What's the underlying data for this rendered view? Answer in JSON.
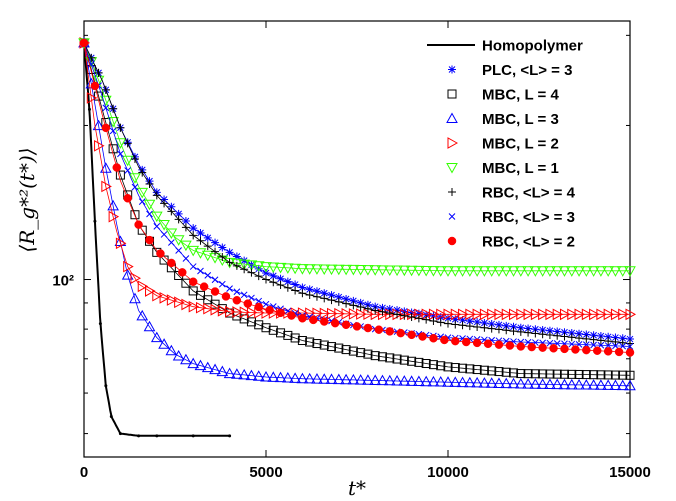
{
  "chart_data": {
    "type": "line",
    "title": "",
    "xlabel": "t*",
    "ylabel": "⟨R_g*²(t*)⟩",
    "xlim": [
      0,
      15000
    ],
    "ylim": [
      45,
      320
    ],
    "yscale": "log",
    "x_ticks": [
      0,
      5000,
      10000,
      15000
    ],
    "x_tick_labels": [
      "0",
      "5000",
      "10000",
      "15000"
    ],
    "y_ticks": [
      100
    ],
    "y_tick_labels": [
      "10²"
    ],
    "legend_position": "top-right",
    "series": [
      {
        "name": "Homopolymer",
        "color": "#000000",
        "marker": "line",
        "x": [
          0,
          150,
          300,
          450,
          600,
          750,
          1000,
          1500,
          2000,
          3000,
          4000
        ],
        "y": [
          290,
          215,
          130,
          82,
          62,
          54,
          50,
          49.5,
          49.5,
          49.5,
          49.5
        ]
      },
      {
        "name": "PLC, <L> = 3",
        "color": "#0000ff",
        "marker": "asterisk",
        "x": [
          0,
          500,
          1000,
          1500,
          2000,
          3000,
          4000,
          5000,
          6000,
          8000,
          10000,
          12000,
          15000
        ],
        "y": [
          290,
          245,
          198,
          168,
          148,
          126,
          113,
          103,
          96.5,
          88.5,
          84,
          80.5,
          76.5
        ]
      },
      {
        "name": "MBC, L = 4",
        "color": "#000000",
        "marker": "square",
        "x": [
          0,
          500,
          1000,
          1500,
          2000,
          3000,
          4000,
          5000,
          6000,
          8000,
          10000,
          12000,
          15000
        ],
        "y": [
          290,
          215,
          160,
          128,
          113,
          95,
          86,
          80.5,
          76,
          71,
          67.5,
          65.5,
          65
        ]
      },
      {
        "name": "MBC, L = 3",
        "color": "#0000ff",
        "marker": "triangle-up",
        "x": [
          0,
          300,
          600,
          900,
          1200,
          1500,
          2000,
          2500,
          3000,
          4000,
          5000,
          6000,
          8000,
          10000,
          12000,
          15000
        ],
        "y": [
          290,
          220,
          165,
          128,
          102,
          87,
          77,
          71.5,
          68.5,
          65.5,
          64.5,
          64,
          63.5,
          63,
          62.5,
          62
        ]
      },
      {
        "name": "MBC, L = 2",
        "color": "#ff0000",
        "marker": "triangle-right",
        "x": [
          0,
          300,
          600,
          900,
          1200,
          1500,
          2000,
          3000,
          4000,
          5000,
          6000,
          8000,
          10000,
          12000,
          15000
        ],
        "y": [
          290,
          200,
          152,
          124,
          106,
          98,
          93,
          88.5,
          86.5,
          86,
          86,
          85.5,
          85.5,
          85.5,
          85.5
        ]
      },
      {
        "name": "MBC, L = 1",
        "color": "#33ff00",
        "marker": "triangle-down",
        "x": [
          0,
          500,
          1000,
          1500,
          2000,
          2500,
          3000,
          4000,
          5000,
          6000,
          8000,
          10000,
          12000,
          15000
        ],
        "y": [
          290,
          235,
          185,
          152,
          133,
          121,
          114,
          108,
          106,
          105,
          104.5,
          104,
          104,
          104
        ]
      },
      {
        "name": "RBC, <L> = 4",
        "color": "#000000",
        "marker": "plus",
        "x": [
          0,
          500,
          1000,
          1500,
          2000,
          3000,
          4000,
          5000,
          6000,
          8000,
          10000,
          12000,
          15000
        ],
        "y": [
          290,
          245,
          198,
          166,
          146,
          122,
          108,
          100,
          94,
          87,
          82,
          79,
          75
        ]
      },
      {
        "name": "RBC, <L> = 3",
        "color": "#0000ff",
        "marker": "cross",
        "x": [
          0,
          500,
          1000,
          1500,
          2000,
          3000,
          4000,
          5000,
          6000,
          8000,
          10000,
          12000,
          15000
        ],
        "y": [
          290,
          228,
          176,
          146,
          127,
          106,
          96,
          89.5,
          85,
          80,
          77,
          75.5,
          74
        ]
      },
      {
        "name": "RBC, <L> = 2",
        "color": "#ff0000",
        "marker": "filled-circle",
        "x": [
          0,
          500,
          1000,
          1500,
          2000,
          3000,
          4000,
          5000,
          6000,
          8000,
          10000,
          12000,
          15000
        ],
        "y": [
          290,
          210,
          156,
          128,
          114,
          99,
          92,
          87.5,
          84,
          80,
          76,
          74,
          72
        ]
      }
    ]
  }
}
